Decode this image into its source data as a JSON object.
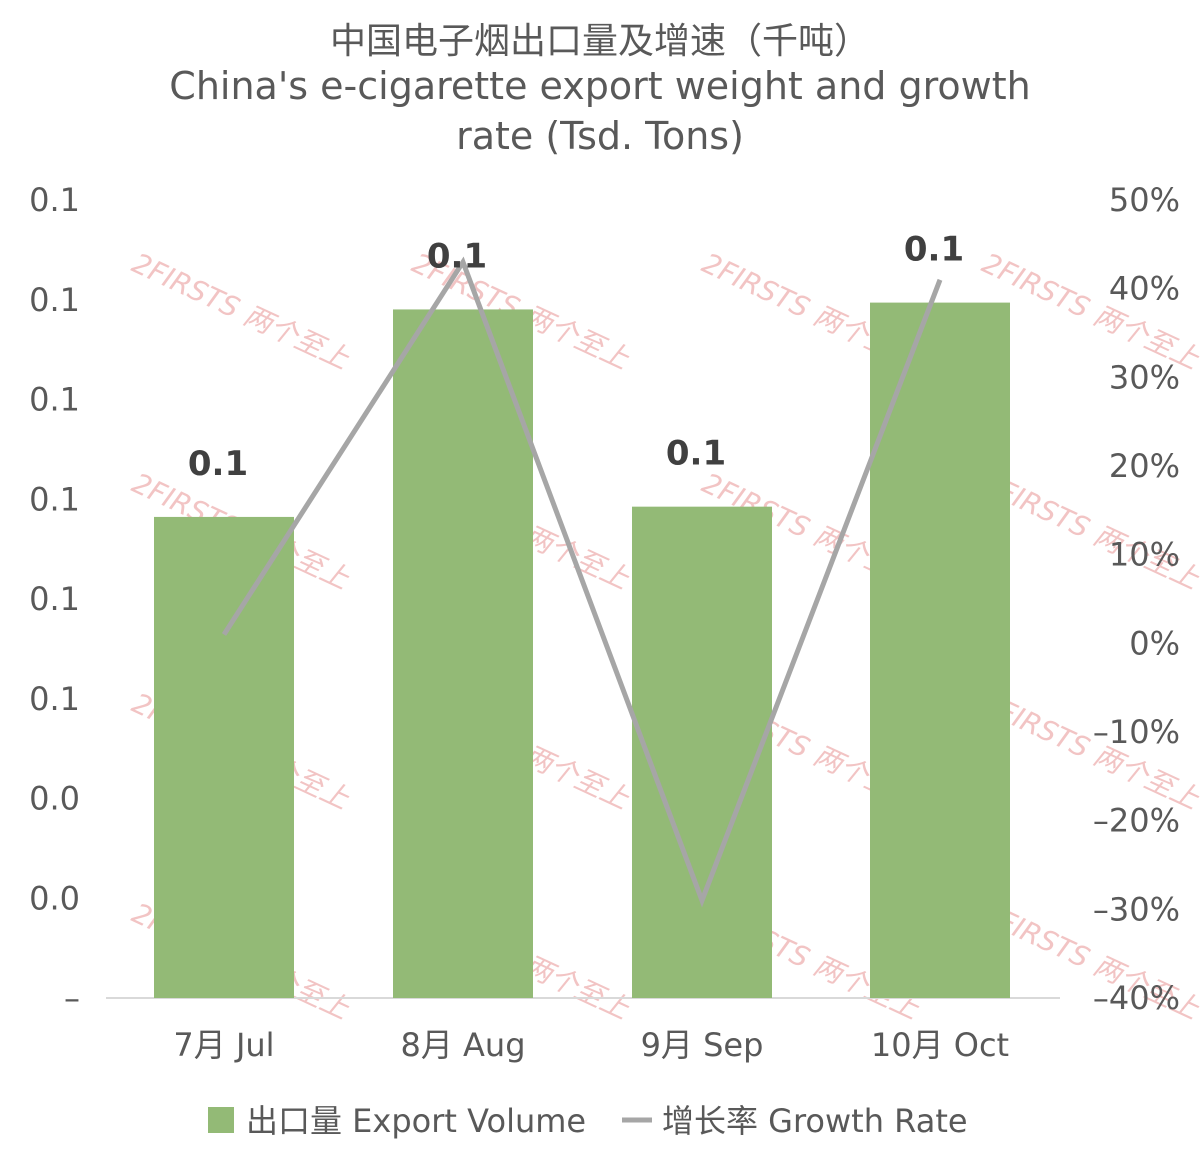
{
  "chart_data": {
    "type": "bar",
    "title_cn": "中国电子烟出口量及增速（千吨）",
    "title_en_line1": "China's e-cigarette export weight and growth",
    "title_en_line2": "rate (Tsd. Tons)",
    "categories": [
      "7月 Jul",
      "8月 Aug",
      "9月 Sep",
      "10月 Oct"
    ],
    "series": [
      {
        "name": "出口量 Export Volume",
        "type": "bar",
        "axis": "left",
        "color": "#93ba76",
        "values": [
          0.0822,
          0.1004,
          0.0831,
          0.101
        ],
        "labels": [
          "0.1",
          "0.1",
          "0.1",
          "0.1"
        ]
      },
      {
        "name": "增长率 Growth Rate",
        "type": "line",
        "axis": "right",
        "color": "#a6a6a6",
        "values": [
          0.01,
          0.43,
          -0.29,
          0.41
        ]
      }
    ],
    "left_axis": {
      "min": 0.04,
      "max": 0.11,
      "tick_labels": [
        "–",
        "0.0",
        "0.0",
        "0.1",
        "0.1",
        "0.1",
        "0.1",
        "0.1",
        "0.1"
      ]
    },
    "right_axis": {
      "min": -0.4,
      "max": 0.5,
      "tick_labels": [
        "–40%",
        "–30%",
        "–20%",
        "–10%",
        "0%",
        "10%",
        "20%",
        "30%",
        "40%",
        "50%"
      ]
    },
    "legend_position": "bottom",
    "grid": false
  },
  "watermark": {
    "text": "2FIRSTS 两个至上"
  }
}
